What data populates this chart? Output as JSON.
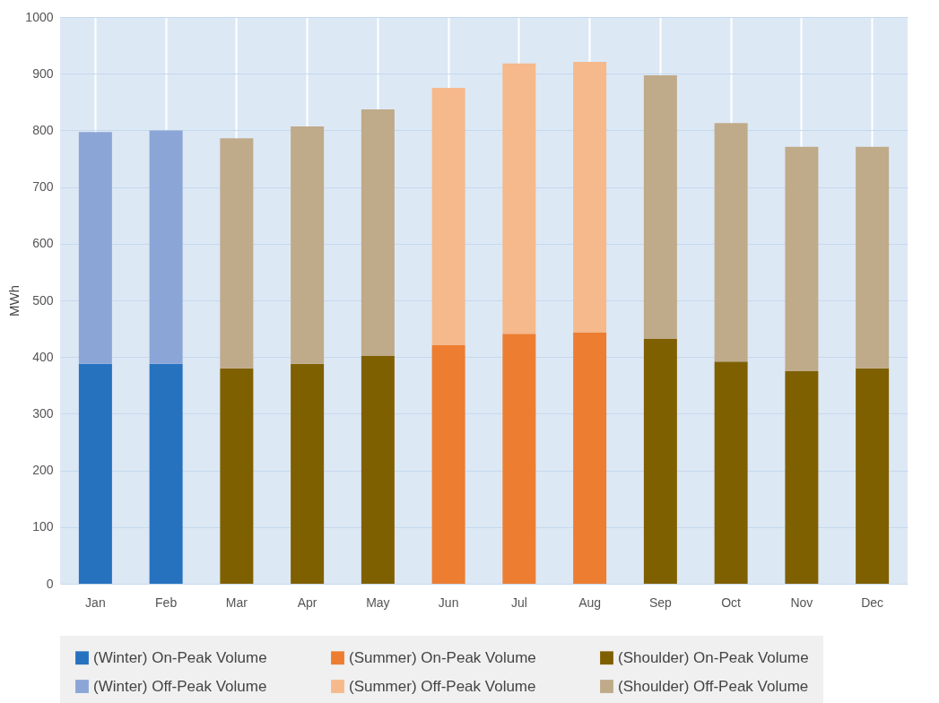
{
  "chart_data": {
    "type": "bar",
    "stacked": true,
    "ylabel": "MWh",
    "categories": [
      "Jan",
      "Feb",
      "Mar",
      "Apr",
      "May",
      "Jun",
      "Jul",
      "Aug",
      "Sep",
      "Oct",
      "Nov",
      "Dec"
    ],
    "series": [
      {
        "name": "(Winter) On-Peak Volume",
        "color": "#2672bf",
        "values": [
          388,
          388,
          null,
          null,
          null,
          null,
          null,
          null,
          null,
          null,
          null,
          null
        ]
      },
      {
        "name": "(Summer) On-Peak Volume",
        "color": "#ed7d31",
        "values": [
          null,
          null,
          null,
          null,
          null,
          421,
          441,
          443,
          null,
          null,
          null,
          null
        ]
      },
      {
        "name": "(Shoulder) On-Peak Volume",
        "color": "#7f6000",
        "values": [
          null,
          null,
          380,
          388,
          402,
          null,
          null,
          null,
          432,
          392,
          375,
          380
        ]
      },
      {
        "name": "(Winter) Off-Peak Volume",
        "color": "#8ba6d6",
        "values": [
          409,
          412,
          null,
          null,
          null,
          null,
          null,
          null,
          null,
          null,
          null,
          null
        ]
      },
      {
        "name": "(Summer) Off-Peak Volume",
        "color": "#f5b98b",
        "values": [
          null,
          null,
          null,
          null,
          null,
          454,
          477,
          478,
          null,
          null,
          null,
          null
        ]
      },
      {
        "name": "(Shoulder) Off-Peak Volume",
        "color": "#bfaa89",
        "values": [
          null,
          null,
          406,
          419,
          435,
          null,
          null,
          null,
          465,
          421,
          396,
          391
        ]
      }
    ],
    "ylim": [
      0,
      1000
    ],
    "yticks": [
      0,
      100,
      200,
      300,
      400,
      500,
      600,
      700,
      800,
      900,
      1000
    ],
    "grid": true,
    "legend": "bottom"
  }
}
